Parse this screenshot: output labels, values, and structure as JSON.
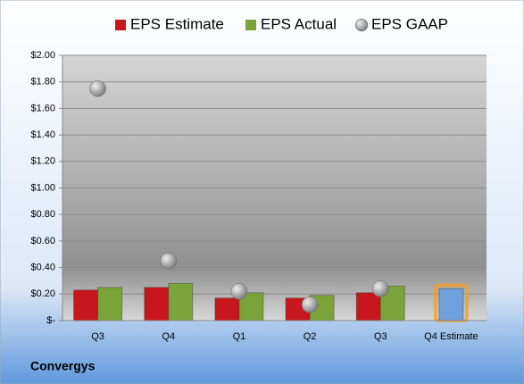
{
  "chart_data": {
    "type": "bar",
    "company": "Convergys",
    "categories": [
      "Q3",
      "Q4",
      "Q1",
      "Q2",
      "Q3",
      "Q4 Estimate"
    ],
    "series": [
      {
        "name": "EPS Estimate",
        "color": "#c8171c",
        "point_colors": [
          "#c8171c",
          "#c8171c",
          "#c8171c",
          "#c8171c",
          "#c8171c",
          "#6fa0dc"
        ],
        "values": [
          0.23,
          0.25,
          0.17,
          0.17,
          0.21,
          0.24
        ]
      },
      {
        "name": "EPS Actual",
        "color": "#7aa33a",
        "values": [
          0.25,
          0.28,
          0.21,
          0.19,
          0.26,
          null
        ]
      },
      {
        "name": "EPS GAAP",
        "color": "#a6a6a6",
        "marker": "circle",
        "values": [
          1.75,
          0.45,
          0.22,
          0.12,
          0.24,
          null
        ]
      }
    ],
    "ylim": [
      0,
      2
    ],
    "yticks": [
      {
        "value": 0,
        "label": "$-"
      },
      {
        "value": 0.2,
        "label": "$0.20"
      },
      {
        "value": 0.4,
        "label": "$0.40"
      },
      {
        "value": 0.6,
        "label": "$0.60"
      },
      {
        "value": 0.8,
        "label": "$0.80"
      },
      {
        "value": 1,
        "label": "$1.00"
      },
      {
        "value": 1.2,
        "label": "$1.20"
      },
      {
        "value": 1.4,
        "label": "$1.40"
      },
      {
        "value": 1.6,
        "label": "$1.60"
      },
      {
        "value": 1.8,
        "label": "$1.80"
      },
      {
        "value": 2,
        "label": "$2.00"
      }
    ],
    "grid": true,
    "legend": "top"
  }
}
